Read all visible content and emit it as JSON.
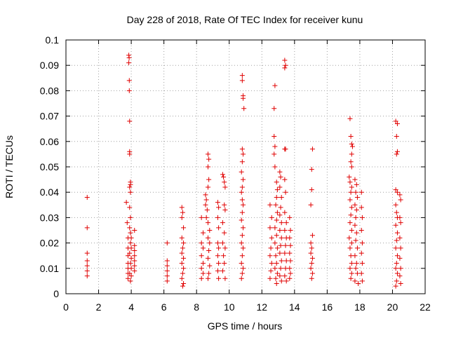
{
  "chart_data": {
    "type": "scatter",
    "title": "Day 228 of 2018, Rate Of TEC Index for receiver kunu",
    "xlabel": "GPS time / hours",
    "ylabel": "ROTI / TECUs",
    "xlim": [
      0,
      22
    ],
    "ylim": [
      0,
      0.1
    ],
    "xticks": [
      0,
      2,
      4,
      6,
      8,
      10,
      12,
      14,
      16,
      18,
      20,
      22
    ],
    "yticks": [
      0,
      0.01,
      0.02,
      0.03,
      0.04,
      0.05,
      0.06,
      0.07,
      0.08,
      0.09,
      0.1
    ],
    "grid": true,
    "marker": "+",
    "colors": {
      "series": "#e00000",
      "grid": "#a0a0a0",
      "axis": "#000000"
    },
    "series": [
      {
        "points": [
          [
            1.3,
            0.038
          ],
          [
            1.3,
            0.026
          ],
          [
            1.3,
            0.016
          ],
          [
            1.3,
            0.013
          ],
          [
            1.3,
            0.011
          ],
          [
            1.3,
            0.009
          ],
          [
            1.3,
            0.007
          ],
          [
            3.7,
            0.036
          ],
          [
            3.75,
            0.028
          ],
          [
            3.8,
            0.022
          ],
          [
            3.8,
            0.018
          ],
          [
            3.8,
            0.015
          ],
          [
            3.8,
            0.012
          ],
          [
            3.8,
            0.01
          ],
          [
            3.8,
            0.008
          ],
          [
            3.8,
            0.006
          ],
          [
            3.85,
            0.094
          ],
          [
            3.87,
            0.093
          ],
          [
            3.85,
            0.091
          ],
          [
            3.88,
            0.084
          ],
          [
            3.88,
            0.08
          ],
          [
            3.9,
            0.068
          ],
          [
            3.9,
            0.056
          ],
          [
            3.9,
            0.055
          ],
          [
            3.95,
            0.044
          ],
          [
            3.95,
            0.043
          ],
          [
            3.9,
            0.042
          ],
          [
            3.95,
            0.04
          ],
          [
            3.9,
            0.034
          ],
          [
            3.95,
            0.03
          ],
          [
            3.9,
            0.026
          ],
          [
            3.95,
            0.024
          ],
          [
            4.0,
            0.022
          ],
          [
            3.95,
            0.02
          ],
          [
            4.0,
            0.018
          ],
          [
            3.9,
            0.016
          ],
          [
            4.0,
            0.014
          ],
          [
            3.95,
            0.012
          ],
          [
            4.0,
            0.01
          ],
          [
            3.9,
            0.008
          ],
          [
            4.0,
            0.007
          ],
          [
            3.95,
            0.005
          ],
          [
            4.2,
            0.025
          ],
          [
            4.2,
            0.019
          ],
          [
            4.2,
            0.017
          ],
          [
            4.2,
            0.015
          ],
          [
            4.2,
            0.013
          ],
          [
            4.2,
            0.011
          ],
          [
            4.2,
            0.009
          ],
          [
            6.2,
            0.02
          ],
          [
            6.2,
            0.013
          ],
          [
            6.2,
            0.011
          ],
          [
            6.2,
            0.009
          ],
          [
            6.2,
            0.007
          ],
          [
            6.2,
            0.005
          ],
          [
            7.1,
            0.034
          ],
          [
            7.15,
            0.032
          ],
          [
            7.1,
            0.03
          ],
          [
            7.2,
            0.026
          ],
          [
            7.1,
            0.022
          ],
          [
            7.2,
            0.02
          ],
          [
            7.15,
            0.018
          ],
          [
            7.1,
            0.016
          ],
          [
            7.2,
            0.014
          ],
          [
            7.1,
            0.012
          ],
          [
            7.2,
            0.01
          ],
          [
            7.15,
            0.008
          ],
          [
            7.1,
            0.006
          ],
          [
            7.2,
            0.004
          ],
          [
            7.15,
            0.003
          ],
          [
            8.3,
            0.03
          ],
          [
            8.4,
            0.024
          ],
          [
            8.3,
            0.02
          ],
          [
            8.4,
            0.018
          ],
          [
            8.3,
            0.015
          ],
          [
            8.4,
            0.012
          ],
          [
            8.3,
            0.01
          ],
          [
            8.4,
            0.008
          ],
          [
            8.3,
            0.006
          ],
          [
            8.55,
            0.039
          ],
          [
            8.6,
            0.037
          ],
          [
            8.55,
            0.035
          ],
          [
            8.65,
            0.033
          ],
          [
            8.6,
            0.03
          ],
          [
            8.7,
            0.055
          ],
          [
            8.75,
            0.053
          ],
          [
            8.7,
            0.05
          ],
          [
            8.75,
            0.045
          ],
          [
            8.7,
            0.042
          ],
          [
            8.7,
            0.028
          ],
          [
            8.8,
            0.025
          ],
          [
            8.7,
            0.022
          ],
          [
            8.8,
            0.02
          ],
          [
            8.75,
            0.017
          ],
          [
            8.7,
            0.014
          ],
          [
            8.8,
            0.011
          ],
          [
            8.75,
            0.008
          ],
          [
            8.7,
            0.006
          ],
          [
            9.3,
            0.036
          ],
          [
            9.35,
            0.034
          ],
          [
            9.3,
            0.03
          ],
          [
            9.35,
            0.026
          ],
          [
            9.3,
            0.02
          ],
          [
            9.35,
            0.018
          ],
          [
            9.3,
            0.015
          ],
          [
            9.35,
            0.012
          ],
          [
            9.3,
            0.009
          ],
          [
            9.35,
            0.006
          ],
          [
            9.6,
            0.047
          ],
          [
            9.65,
            0.046
          ],
          [
            9.7,
            0.044
          ],
          [
            9.75,
            0.042
          ],
          [
            9.7,
            0.035
          ],
          [
            9.75,
            0.033
          ],
          [
            9.6,
            0.028
          ],
          [
            9.7,
            0.024
          ],
          [
            9.6,
            0.02
          ],
          [
            9.75,
            0.018
          ],
          [
            9.65,
            0.015
          ],
          [
            9.7,
            0.012
          ],
          [
            9.6,
            0.009
          ],
          [
            9.75,
            0.006
          ],
          [
            10.8,
            0.086
          ],
          [
            10.8,
            0.084
          ],
          [
            10.85,
            0.078
          ],
          [
            10.85,
            0.077
          ],
          [
            10.9,
            0.073
          ],
          [
            10.8,
            0.057
          ],
          [
            10.85,
            0.055
          ],
          [
            10.8,
            0.052
          ],
          [
            10.75,
            0.048
          ],
          [
            10.85,
            0.045
          ],
          [
            10.8,
            0.042
          ],
          [
            10.75,
            0.04
          ],
          [
            10.8,
            0.037
          ],
          [
            10.85,
            0.035
          ],
          [
            10.8,
            0.032
          ],
          [
            10.75,
            0.029
          ],
          [
            10.85,
            0.026
          ],
          [
            10.8,
            0.023
          ],
          [
            10.75,
            0.02
          ],
          [
            10.85,
            0.018
          ],
          [
            10.8,
            0.015
          ],
          [
            10.75,
            0.012
          ],
          [
            10.85,
            0.01
          ],
          [
            10.8,
            0.008
          ],
          [
            10.75,
            0.006
          ],
          [
            12.5,
            0.035
          ],
          [
            12.6,
            0.03
          ],
          [
            12.5,
            0.026
          ],
          [
            12.6,
            0.022
          ],
          [
            12.55,
            0.018
          ],
          [
            12.5,
            0.015
          ],
          [
            12.6,
            0.012
          ],
          [
            12.55,
            0.009
          ],
          [
            12.5,
            0.006
          ],
          [
            12.8,
            0.082
          ],
          [
            12.75,
            0.073
          ],
          [
            12.75,
            0.062
          ],
          [
            12.8,
            0.058
          ],
          [
            12.75,
            0.055
          ],
          [
            12.8,
            0.05
          ],
          [
            12.9,
            0.044
          ],
          [
            12.95,
            0.041
          ],
          [
            12.9,
            0.038
          ],
          [
            12.85,
            0.035
          ],
          [
            12.95,
            0.032
          ],
          [
            12.9,
            0.029
          ],
          [
            12.8,
            0.026
          ],
          [
            12.9,
            0.023
          ],
          [
            12.8,
            0.02
          ],
          [
            12.95,
            0.018
          ],
          [
            12.85,
            0.015
          ],
          [
            12.9,
            0.012
          ],
          [
            12.8,
            0.01
          ],
          [
            12.95,
            0.008
          ],
          [
            12.85,
            0.006
          ],
          [
            12.9,
            0.004
          ],
          [
            13.1,
            0.048
          ],
          [
            13.15,
            0.046
          ],
          [
            13.1,
            0.042
          ],
          [
            13.2,
            0.038
          ],
          [
            13.15,
            0.034
          ],
          [
            13.1,
            0.031
          ],
          [
            13.2,
            0.028
          ],
          [
            13.1,
            0.025
          ],
          [
            13.2,
            0.022
          ],
          [
            13.15,
            0.019
          ],
          [
            13.1,
            0.016
          ],
          [
            13.2,
            0.013
          ],
          [
            13.15,
            0.01
          ],
          [
            13.1,
            0.007
          ],
          [
            13.2,
            0.005
          ],
          [
            13.4,
            0.092
          ],
          [
            13.45,
            0.09
          ],
          [
            13.4,
            0.089
          ],
          [
            13.4,
            0.057
          ],
          [
            13.45,
            0.057
          ],
          [
            13.4,
            0.045
          ],
          [
            13.45,
            0.04
          ],
          [
            13.4,
            0.032
          ],
          [
            13.5,
            0.028
          ],
          [
            13.4,
            0.025
          ],
          [
            13.5,
            0.022
          ],
          [
            13.45,
            0.019
          ],
          [
            13.4,
            0.016
          ],
          [
            13.5,
            0.013
          ],
          [
            13.45,
            0.01
          ],
          [
            13.4,
            0.007
          ],
          [
            13.5,
            0.005
          ],
          [
            13.7,
            0.03
          ],
          [
            13.75,
            0.025
          ],
          [
            13.7,
            0.022
          ],
          [
            13.75,
            0.019
          ],
          [
            13.7,
            0.016
          ],
          [
            13.75,
            0.013
          ],
          [
            13.7,
            0.01
          ],
          [
            13.75,
            0.008
          ],
          [
            13.7,
            0.006
          ],
          [
            15.1,
            0.057
          ],
          [
            15.05,
            0.049
          ],
          [
            15.05,
            0.041
          ],
          [
            15.0,
            0.035
          ],
          [
            15.1,
            0.023
          ],
          [
            15.0,
            0.02
          ],
          [
            15.05,
            0.018
          ],
          [
            15.0,
            0.016
          ],
          [
            15.1,
            0.014
          ],
          [
            15.05,
            0.012
          ],
          [
            15.0,
            0.01
          ],
          [
            15.1,
            0.008
          ],
          [
            15.05,
            0.006
          ],
          [
            17.4,
            0.069
          ],
          [
            17.45,
            0.062
          ],
          [
            17.5,
            0.059
          ],
          [
            17.55,
            0.058
          ],
          [
            17.5,
            0.055
          ],
          [
            17.45,
            0.052
          ],
          [
            17.5,
            0.05
          ],
          [
            17.35,
            0.046
          ],
          [
            17.4,
            0.044
          ],
          [
            17.5,
            0.042
          ],
          [
            17.45,
            0.04
          ],
          [
            17.4,
            0.037
          ],
          [
            17.5,
            0.034
          ],
          [
            17.45,
            0.031
          ],
          [
            17.4,
            0.028
          ],
          [
            17.5,
            0.025
          ],
          [
            17.35,
            0.022
          ],
          [
            17.5,
            0.02
          ],
          [
            17.4,
            0.018
          ],
          [
            17.45,
            0.015
          ],
          [
            17.5,
            0.012
          ],
          [
            17.4,
            0.01
          ],
          [
            17.5,
            0.008
          ],
          [
            17.45,
            0.006
          ],
          [
            17.7,
            0.045
          ],
          [
            17.8,
            0.043
          ],
          [
            17.75,
            0.04
          ],
          [
            17.85,
            0.038
          ],
          [
            17.7,
            0.035
          ],
          [
            17.8,
            0.033
          ],
          [
            17.75,
            0.03
          ],
          [
            17.7,
            0.027
          ],
          [
            17.8,
            0.024
          ],
          [
            17.75,
            0.021
          ],
          [
            17.85,
            0.018
          ],
          [
            17.7,
            0.015
          ],
          [
            17.8,
            0.012
          ],
          [
            17.75,
            0.01
          ],
          [
            17.85,
            0.008
          ],
          [
            17.7,
            0.005
          ],
          [
            17.9,
            0.004
          ],
          [
            18.1,
            0.04
          ],
          [
            18.1,
            0.034
          ],
          [
            18.15,
            0.03
          ],
          [
            18.1,
            0.025
          ],
          [
            18.15,
            0.02
          ],
          [
            18.1,
            0.016
          ],
          [
            18.15,
            0.012
          ],
          [
            18.1,
            0.008
          ],
          [
            18.15,
            0.005
          ],
          [
            20.2,
            0.068
          ],
          [
            20.3,
            0.067
          ],
          [
            20.25,
            0.062
          ],
          [
            20.3,
            0.056
          ],
          [
            20.25,
            0.055
          ],
          [
            20.2,
            0.041
          ],
          [
            20.3,
            0.04
          ],
          [
            20.2,
            0.035
          ],
          [
            20.25,
            0.032
          ],
          [
            20.3,
            0.03
          ],
          [
            20.2,
            0.027
          ],
          [
            20.3,
            0.024
          ],
          [
            20.25,
            0.021
          ],
          [
            20.2,
            0.018
          ],
          [
            20.3,
            0.015
          ],
          [
            20.25,
            0.012
          ],
          [
            20.2,
            0.01
          ],
          [
            20.3,
            0.008
          ],
          [
            20.25,
            0.005
          ],
          [
            20.2,
            0.003
          ],
          [
            20.45,
            0.039
          ],
          [
            20.5,
            0.037
          ],
          [
            20.45,
            0.03
          ],
          [
            20.5,
            0.028
          ],
          [
            20.45,
            0.022
          ],
          [
            20.5,
            0.018
          ],
          [
            20.45,
            0.014
          ],
          [
            20.5,
            0.01
          ],
          [
            20.45,
            0.007
          ],
          [
            20.5,
            0.004
          ]
        ]
      }
    ]
  }
}
